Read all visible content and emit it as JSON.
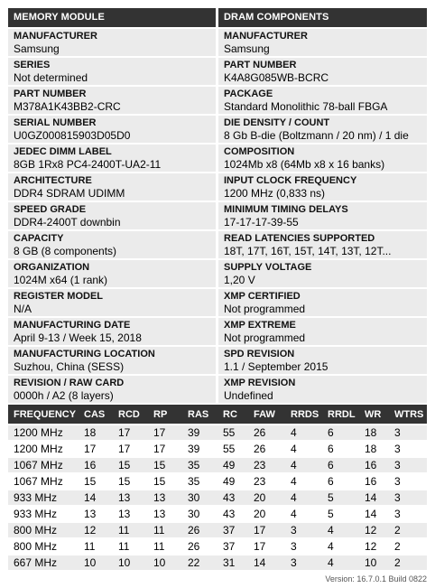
{
  "module": {
    "header": "MEMORY MODULE",
    "fields": [
      {
        "label": "MANUFACTURER",
        "value": "Samsung"
      },
      {
        "label": "SERIES",
        "value": "Not determined"
      },
      {
        "label": "PART NUMBER",
        "value": "M378A1K43BB2-CRC"
      },
      {
        "label": "SERIAL NUMBER",
        "value": "U0GZ000815903D05D0"
      },
      {
        "label": "JEDEC DIMM LABEL",
        "value": "8GB 1Rx8 PC4-2400T-UA2-11"
      },
      {
        "label": "ARCHITECTURE",
        "value": "DDR4 SDRAM UDIMM"
      },
      {
        "label": "SPEED GRADE",
        "value": "DDR4-2400T downbin"
      },
      {
        "label": "CAPACITY",
        "value": "8 GB (8 components)"
      },
      {
        "label": "ORGANIZATION",
        "value": "1024M x64 (1 rank)"
      },
      {
        "label": "REGISTER MODEL",
        "value": "N/A"
      },
      {
        "label": "MANUFACTURING DATE",
        "value": "April 9-13 / Week 15, 2018"
      },
      {
        "label": "MANUFACTURING LOCATION",
        "value": "Suzhou, China (SESS)"
      },
      {
        "label": "REVISION / RAW CARD",
        "value": "0000h / A2 (8 layers)"
      }
    ]
  },
  "components": {
    "header": "DRAM COMPONENTS",
    "fields": [
      {
        "label": "MANUFACTURER",
        "value": "Samsung"
      },
      {
        "label": "PART NUMBER",
        "value": "K4A8G085WB-BCRC"
      },
      {
        "label": "PACKAGE",
        "value": "Standard Monolithic 78-ball FBGA"
      },
      {
        "label": "DIE DENSITY / COUNT",
        "value": "8 Gb B-die (Boltzmann / 20 nm) / 1 die"
      },
      {
        "label": "COMPOSITION",
        "value": "1024Mb x8 (64Mb x8 x 16 banks)"
      },
      {
        "label": "INPUT CLOCK FREQUENCY",
        "value": "1200 MHz (0,833 ns)"
      },
      {
        "label": "MINIMUM TIMING DELAYS",
        "value": "17-17-17-39-55"
      },
      {
        "label": "READ LATENCIES SUPPORTED",
        "value": "18T, 17T, 16T, 15T, 14T, 13T, 12T..."
      },
      {
        "label": "SUPPLY VOLTAGE",
        "value": "1,20 V"
      },
      {
        "label": "XMP CERTIFIED",
        "value": "Not programmed"
      },
      {
        "label": "XMP EXTREME",
        "value": "Not programmed"
      },
      {
        "label": "SPD REVISION",
        "value": "1.1 / September 2015"
      },
      {
        "label": "XMP REVISION",
        "value": "Undefined"
      }
    ]
  },
  "timings": {
    "columns": [
      "FREQUENCY",
      "CAS",
      "RCD",
      "RP",
      "RAS",
      "RC",
      "FAW",
      "RRDS",
      "RRDL",
      "WR",
      "WTRS"
    ],
    "rows": [
      [
        "1200 MHz",
        "18",
        "17",
        "17",
        "39",
        "55",
        "26",
        "4",
        "6",
        "18",
        "3"
      ],
      [
        "1200 MHz",
        "17",
        "17",
        "17",
        "39",
        "55",
        "26",
        "4",
        "6",
        "18",
        "3"
      ],
      [
        "1067 MHz",
        "16",
        "15",
        "15",
        "35",
        "49",
        "23",
        "4",
        "6",
        "16",
        "3"
      ],
      [
        "1067 MHz",
        "15",
        "15",
        "15",
        "35",
        "49",
        "23",
        "4",
        "6",
        "16",
        "3"
      ],
      [
        "933 MHz",
        "14",
        "13",
        "13",
        "30",
        "43",
        "20",
        "4",
        "5",
        "14",
        "3"
      ],
      [
        "933 MHz",
        "13",
        "13",
        "13",
        "30",
        "43",
        "20",
        "4",
        "5",
        "14",
        "3"
      ],
      [
        "800 MHz",
        "12",
        "11",
        "11",
        "26",
        "37",
        "17",
        "3",
        "4",
        "12",
        "2"
      ],
      [
        "800 MHz",
        "11",
        "11",
        "11",
        "26",
        "37",
        "17",
        "3",
        "4",
        "12",
        "2"
      ],
      [
        "667 MHz",
        "10",
        "10",
        "10",
        "22",
        "31",
        "14",
        "3",
        "4",
        "10",
        "2"
      ]
    ]
  },
  "footer": {
    "version": "Version: 16.7.0.1 Build 0822"
  }
}
